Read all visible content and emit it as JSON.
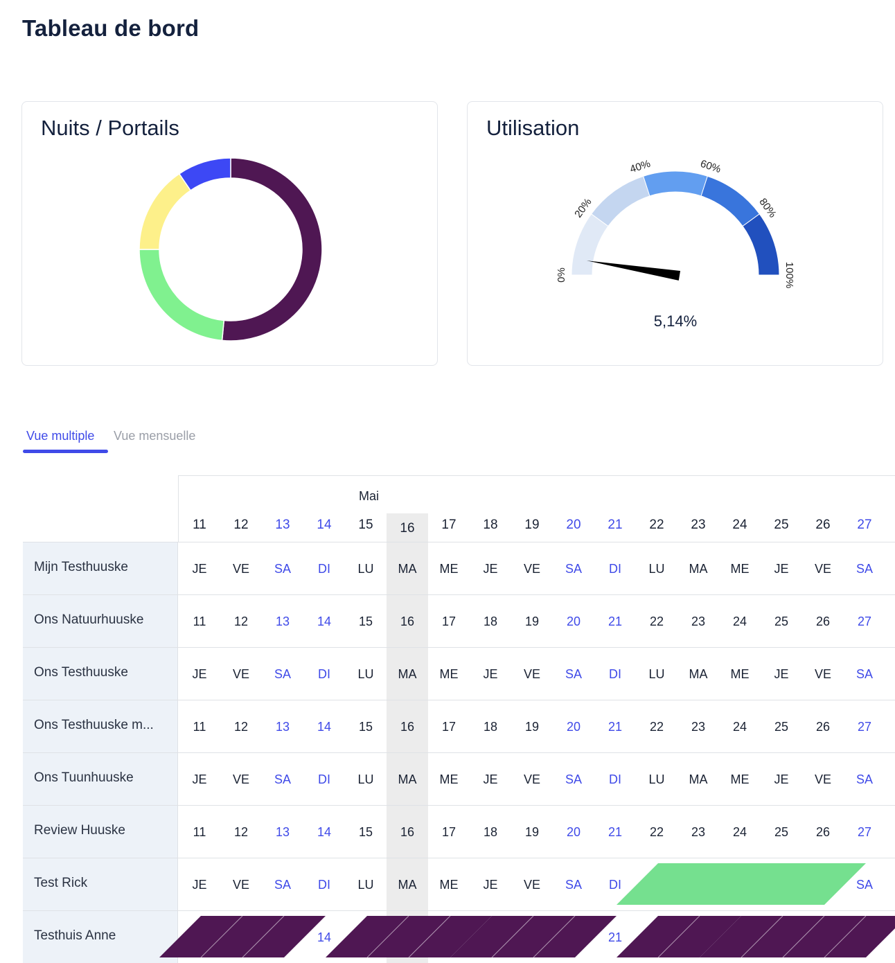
{
  "page_title": "Tableau de bord",
  "cards": {
    "nights": {
      "title": "Nuits / Portails",
      "chart_data": {
        "type": "pie",
        "variant": "donut",
        "slices": [
          {
            "value": 51.5,
            "color": "#4f1753"
          },
          {
            "value": 23.5,
            "color": "#80f18f"
          },
          {
            "value": 15.5,
            "color": "#fdf08a"
          },
          {
            "value": 9.5,
            "color": "#3d48f5"
          }
        ]
      }
    },
    "utilisation": {
      "title": "Utilisation",
      "gauge": {
        "value": 5.14,
        "value_label": "5,14%",
        "ticks": [
          "0%",
          "20%",
          "40%",
          "60%",
          "80%",
          "100%"
        ],
        "band_colors": [
          "#e0e9f6",
          "#c4d6f0",
          "#629ef0",
          "#3975dc",
          "#2150be"
        ]
      }
    }
  },
  "tabs": [
    {
      "label": "Vue multiple",
      "active": true
    },
    {
      "label": "Vue mensuelle",
      "active": false
    }
  ],
  "calendar": {
    "month": "Mai",
    "today": "16",
    "days": [
      {
        "num": "11",
        "abbr": "JE",
        "weekend": false
      },
      {
        "num": "12",
        "abbr": "VE",
        "weekend": false
      },
      {
        "num": "13",
        "abbr": "SA",
        "weekend": true
      },
      {
        "num": "14",
        "abbr": "DI",
        "weekend": true
      },
      {
        "num": "15",
        "abbr": "LU",
        "weekend": false
      },
      {
        "num": "16",
        "abbr": "MA",
        "weekend": false
      },
      {
        "num": "17",
        "abbr": "ME",
        "weekend": false
      },
      {
        "num": "18",
        "abbr": "JE",
        "weekend": false
      },
      {
        "num": "19",
        "abbr": "VE",
        "weekend": false
      },
      {
        "num": "20",
        "abbr": "SA",
        "weekend": true
      },
      {
        "num": "21",
        "abbr": "DI",
        "weekend": true
      },
      {
        "num": "22",
        "abbr": "LU",
        "weekend": false
      },
      {
        "num": "23",
        "abbr": "MA",
        "weekend": false
      },
      {
        "num": "24",
        "abbr": "ME",
        "weekend": false
      },
      {
        "num": "25",
        "abbr": "JE",
        "weekend": false
      },
      {
        "num": "26",
        "abbr": "VE",
        "weekend": false
      },
      {
        "num": "27",
        "abbr": "SA",
        "weekend": true
      }
    ],
    "rows": [
      {
        "name": "Mijn Testhuuske",
        "show": "abbr"
      },
      {
        "name": "Ons Natuurhuuske",
        "show": "num"
      },
      {
        "name": "Ons Testhuuske",
        "show": "abbr"
      },
      {
        "name": "Ons Testhuuske m...",
        "show": "num"
      },
      {
        "name": "Ons Tuunhuuske",
        "show": "abbr"
      },
      {
        "name": "Review Huuske",
        "show": "num"
      },
      {
        "name": "Test Rick",
        "show": "abbr"
      },
      {
        "name": "Testhuis Anne",
        "show": "num"
      }
    ],
    "bookings": [
      {
        "row": 6,
        "start_day": "22",
        "end_day": "26",
        "color": "#75e08f"
      },
      {
        "row": 7,
        "start_day": "11",
        "end_day": "13",
        "color": "#4f1753"
      },
      {
        "row": 7,
        "start_day": "15",
        "end_day": "17",
        "color": "#4f1753"
      },
      {
        "row": 7,
        "start_day": "18",
        "end_day": "20",
        "color": "#4f1753"
      },
      {
        "row": 7,
        "start_day": "22",
        "end_day": "23",
        "color": "#4f1753"
      },
      {
        "row": 7,
        "start_day": "24",
        "end_day": "27",
        "color": "#4f1753"
      }
    ]
  }
}
